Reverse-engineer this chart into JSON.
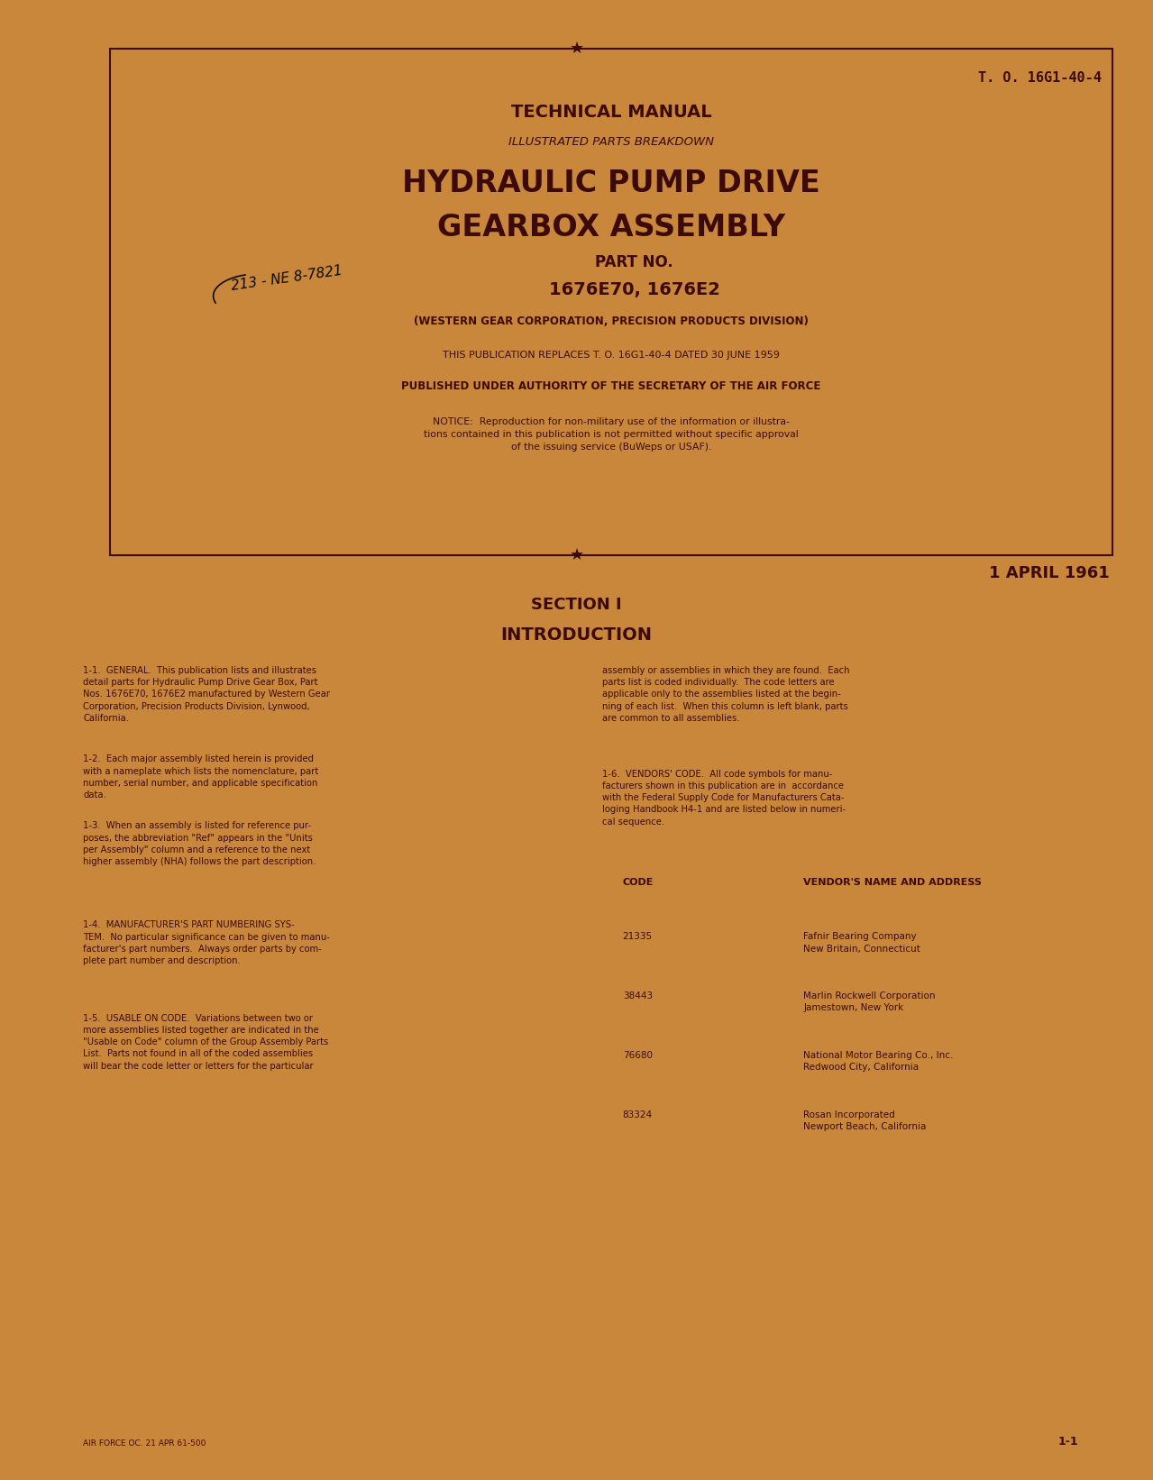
{
  "bg_color": "#c8873a",
  "text_color": "#3d0a0a",
  "page_width": 12.79,
  "page_height": 16.42,
  "to_number": "T. O. 16G1-40-4",
  "tech_manual": "TECHNICAL MANUAL",
  "illustrated": "ILLUSTRATED PARTS BREAKDOWN",
  "title_line1": "HYDRAULIC PUMP DRIVE",
  "title_line2": "GEARBOX ASSEMBLY",
  "part_no_label": "PART NO.",
  "part_numbers": "1676E70, 1676E2",
  "handwritten": "213 - NE 8-7821",
  "western_gear": "(WESTERN GEAR CORPORATION, PRECISION PRODUCTS DIVISION)",
  "replaces": "THIS PUBLICATION REPLACES T. O. 16G1-40-4 DATED 30 JUNE 1959",
  "authority": "PUBLISHED UNDER AUTHORITY OF THE SECRETARY OF THE AIR FORCE",
  "notice": "NOTICE:  Reproduction for non-military use of the information or illustra-\ntions contained in this publication is not permitted without specific approval\nof the issuing service (BuWeps or USAF).",
  "date": "1 APRIL 1961",
  "section_title": "SECTION I",
  "intro_title": "INTRODUCTION",
  "col1_p1": "1-1.  GENERAL.  This publication lists and illustrates\ndetail parts for Hydraulic Pump Drive Gear Box, Part\nNos. 1676E70, 1676E2 manufactured by Western Gear\nCorporation, Precision Products Division, Lynwood,\nCalifornia.",
  "col1_p2": "1-2.  Each major assembly listed herein is provided\nwith a nameplate which lists the nomenclature, part\nnumber, serial number, and applicable specification\ndata.",
  "col1_p3": "1-3.  When an assembly is listed for reference pur-\nposes, the abbreviation \"Ref\" appears in the \"Units\nper Assembly\" column and a reference to the next\nhigher assembly (NHA) follows the part description.",
  "col1_p4": "1-4.  MANUFACTURER'S PART NUMBERING SYS-\nTEM.  No particular significance can be given to manu-\nfacturer's part numbers.  Always order parts by com-\nplete part number and description.",
  "col1_p5": "1-5.  USABLE ON CODE.  Variations between two or\nmore assemblies listed together are indicated in the\n\"Usable on Code\" column of the Group Assembly Parts\nList.  Parts not found in all of the coded assemblies\nwill bear the code letter or letters for the particular",
  "col2_p1": "assembly or assemblies in which they are found.  Each\nparts list is coded individually.  The code letters are\napplicable only to the assemblies listed at the begin-\nning of each list.  When this column is left blank, parts\nare common to all assemblies.",
  "col2_p2": "1-6.  VENDORS' CODE.  All code symbols for manu-\nfacturers shown in this publication are in  accordance\nwith the Federal Supply Code for Manufacturers Cata-\nloging Handbook H4-1 and are listed below in numeri-\ncal sequence.",
  "code_header": "CODE",
  "vendor_header": "VENDOR'S NAME AND ADDRESS",
  "vendors": [
    {
      "code": "21335",
      "name": "Fafnir Bearing Company\nNew Britain, Connecticut"
    },
    {
      "code": "38443",
      "name": "Marlin Rockwell Corporation\nJamestown, New York"
    },
    {
      "code": "76680",
      "name": "National Motor Bearing Co., Inc.\nRedwood City, California"
    },
    {
      "code": "83324",
      "name": "Rosan Incorporated\nNewport Beach, California"
    }
  ],
  "footer_left": "AIR FORCE OC. 21 APR 61-500",
  "footer_right": "1-1"
}
